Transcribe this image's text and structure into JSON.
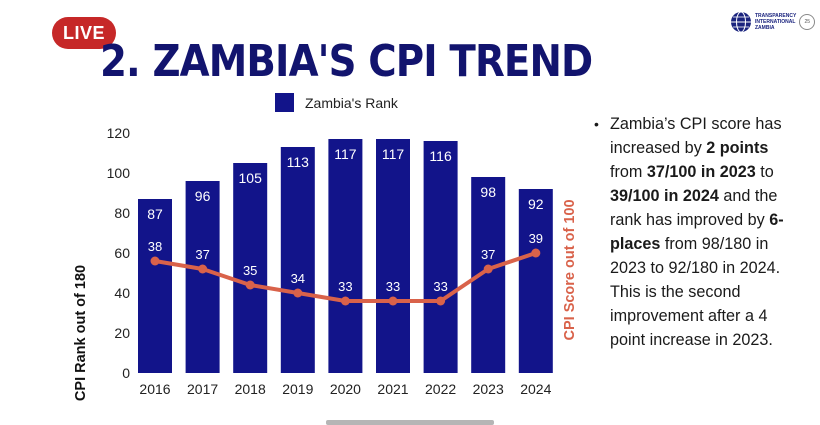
{
  "header": {
    "live_label": "LIVE",
    "title": "2. ZAMBIA'S CPI TREND",
    "org_name": "TRANSPARENCY\nINTERNATIONAL\nZAMBIA",
    "org_badge": "25"
  },
  "chart_data": {
    "type": "bar",
    "categories": [
      "2016",
      "2017",
      "2018",
      "2019",
      "2020",
      "2021",
      "2022",
      "2023",
      "2024"
    ],
    "series": [
      {
        "name": "Zambia's Rank",
        "type": "bar",
        "axis": "left",
        "color": "#12148a",
        "values": [
          87,
          96,
          105,
          113,
          117,
          117,
          116,
          98,
          92
        ]
      },
      {
        "name": "",
        "type": "line",
        "axis": "right",
        "color": "#d9624a",
        "values": [
          38,
          37,
          35,
          34,
          33,
          33,
          33,
          37,
          39
        ]
      }
    ],
    "ylabel": "CPI Rank out of 180",
    "y2label": "CPI Score out of 100",
    "ylim": [
      0,
      120
    ],
    "yticks": [
      0,
      20,
      40,
      60,
      80,
      100,
      120
    ],
    "y2lim": [
      24,
      54
    ],
    "legend": "top",
    "legend_label": "Zambia's Rank",
    "grid": false
  },
  "summary": {
    "bullet": "•",
    "parts": [
      {
        "t": "Zambia’s CPI score has increased by ",
        "b": false
      },
      {
        "t": "2 points",
        "b": true
      },
      {
        "t": " from ",
        "b": false
      },
      {
        "t": "37/100 in 2023",
        "b": true
      },
      {
        "t": " to ",
        "b": false
      },
      {
        "t": "39/100 in 2024",
        "b": true
      },
      {
        "t": " and the rank has improved by ",
        "b": false
      },
      {
        "t": "6-places",
        "b": true
      },
      {
        "t": " from 98/180 in 2023 to 92/180 in 2024. This is the second improvement after a 4 point increase in 2023.",
        "b": false
      }
    ]
  }
}
